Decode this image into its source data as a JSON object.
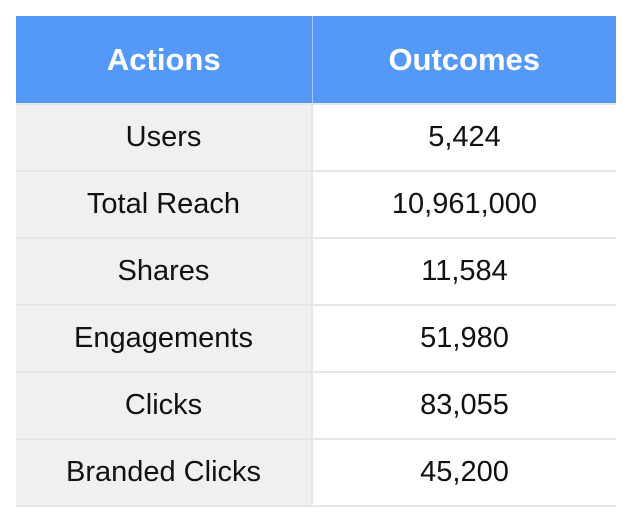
{
  "header": {
    "col1": "Actions",
    "col2": "Outcomes",
    "bg_color": "#5599f8"
  },
  "rows": [
    {
      "action": "Users",
      "outcome": "5,424"
    },
    {
      "action": "Total Reach",
      "outcome": "10,961,000"
    },
    {
      "action": "Shares",
      "outcome": "11,584"
    },
    {
      "action": "Engagements",
      "outcome": "51,980"
    },
    {
      "action": "Clicks",
      "outcome": "83,055"
    },
    {
      "action": "Branded Clicks",
      "outcome": "45,200"
    }
  ]
}
